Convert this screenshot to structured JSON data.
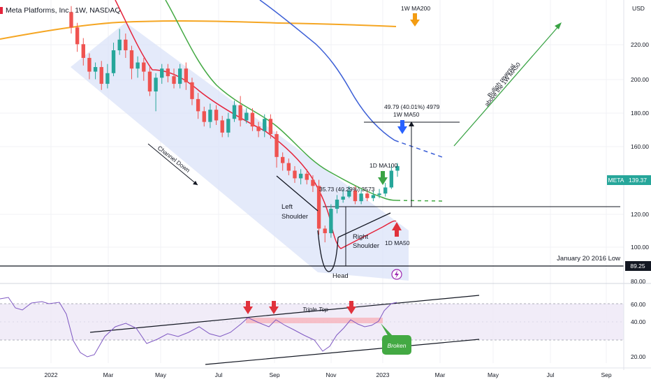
{
  "header": {
    "title": "Meta Platforms, Inc., 1W, NASDAQ"
  },
  "price_axis": {
    "currency": "USD",
    "ticks": [
      "220.00",
      "200.00",
      "180.00",
      "160.00",
      "120.00",
      "100.00",
      "80.00"
    ],
    "ticker_label": "META",
    "last_price": "139.37",
    "low_price_label": "89.25"
  },
  "rsi_axis": {
    "ticks": [
      "60.00",
      "40.00",
      "20.00"
    ]
  },
  "time_axis": {
    "labels": [
      "2022",
      "Mar",
      "May",
      "Jul",
      "Sep",
      "Nov",
      "2023",
      "Mar",
      "May",
      "Jul",
      "Sep"
    ]
  },
  "annotations": {
    "ma200": "1W MA200",
    "ma50w": "1W MA50",
    "ma100d": "1D MA100",
    "ma50d": "1D MA50",
    "measure_top": "49.79 (40.01%) 4979",
    "measure_mid": "35.73 (40.29%) 3573",
    "channel": "Channel Down",
    "left_shoulder_1": "Left",
    "left_shoulder_2": "Shoulder",
    "right_shoulder_1": "Right",
    "right_shoulder_2": "Shoulder",
    "head": "Head",
    "bullish_1": "Bullish reversal",
    "bullish_2": "above the 1W MA50",
    "low_label": "January 20 2016 Low",
    "triple_top": "Triple Top",
    "broken": "Broken"
  },
  "colors": {
    "bull": "#26a69a",
    "bear": "#ef5350",
    "ma200": "#f5a623",
    "ma50w": "#3c5fd6",
    "ma_red": "#e5243b",
    "ma_green": "#43a943",
    "rsi": "#7e57c2",
    "arrow_red": "#e0323c",
    "arrow_green": "#3aa345",
    "arrow_blue": "#2962ff",
    "arrow_orange": "#f39c12",
    "channel": "#dbe3f8"
  },
  "chart_data": {
    "type": "candlestick",
    "symbol": "Meta Platforms, Inc., 1W, NASDAQ",
    "currency": "USD",
    "ylim": [
      62,
      248
    ],
    "x_labels": [
      "2022",
      "Mar",
      "May",
      "Jul",
      "Sep",
      "Nov",
      "2023",
      "Mar",
      "May",
      "Jul",
      "Sep"
    ],
    "candles": [
      [
        240,
        230,
        244,
        226
      ],
      [
        230,
        219,
        233,
        214
      ],
      [
        219,
        210,
        223,
        205
      ],
      [
        210,
        201,
        213,
        196
      ],
      [
        201,
        204,
        207,
        196
      ],
      [
        204,
        193,
        208,
        189
      ],
      [
        193,
        200,
        206,
        190
      ],
      [
        200,
        215,
        220,
        198
      ],
      [
        215,
        222,
        229,
        212
      ],
      [
        222,
        215,
        226,
        210
      ],
      [
        215,
        203,
        218,
        196
      ],
      [
        203,
        207,
        211,
        197
      ],
      [
        207,
        201,
        210,
        195
      ],
      [
        201,
        188,
        204,
        185
      ],
      [
        188,
        197,
        200,
        175
      ],
      [
        197,
        203,
        206,
        193
      ],
      [
        203,
        198,
        206,
        194
      ],
      [
        198,
        193,
        203,
        190
      ],
      [
        193,
        203,
        206,
        190
      ],
      [
        203,
        194,
        207,
        189
      ],
      [
        194,
        183,
        197,
        179
      ],
      [
        183,
        175,
        187,
        170
      ],
      [
        175,
        168,
        178,
        165
      ],
      [
        168,
        176,
        180,
        164
      ],
      [
        176,
        169,
        179,
        166
      ],
      [
        169,
        161,
        172,
        158
      ],
      [
        161,
        170,
        174,
        158
      ],
      [
        170,
        179,
        182,
        168
      ],
      [
        179,
        169,
        185,
        165
      ],
      [
        169,
        174,
        177,
        167
      ],
      [
        174,
        165,
        177,
        162
      ],
      [
        165,
        162,
        168,
        158
      ],
      [
        162,
        170,
        173,
        158
      ],
      [
        170,
        160,
        173,
        157
      ],
      [
        160,
        145,
        162,
        138
      ],
      [
        145,
        141,
        148,
        136
      ],
      [
        141,
        136,
        144,
        133
      ],
      [
        136,
        131,
        139,
        128
      ],
      [
        131,
        134,
        137,
        127
      ],
      [
        134,
        130,
        137,
        127
      ],
      [
        130,
        126,
        133,
        122
      ],
      [
        126,
        98,
        130,
        94
      ],
      [
        98,
        95,
        100,
        89
      ],
      [
        95,
        111,
        114,
        92
      ],
      [
        111,
        117,
        120,
        108
      ],
      [
        117,
        119,
        124,
        115
      ],
      [
        119,
        123,
        126,
        118
      ],
      [
        123,
        116,
        126,
        114
      ],
      [
        116,
        121,
        124,
        114
      ],
      [
        121,
        118,
        123,
        116
      ],
      [
        118,
        120,
        123,
        116
      ],
      [
        120,
        121,
        124,
        118
      ],
      [
        121,
        125,
        128,
        119
      ],
      [
        125,
        136,
        140,
        124
      ],
      [
        136,
        139,
        141,
        132
      ]
    ],
    "lines": {
      "1W MA200": [
        [
          0,
          227
        ],
        [
          20,
          230
        ],
        [
          40,
          233
        ],
        [
          60,
          236
        ],
        [
          80,
          238
        ],
        [
          100,
          240
        ],
        [
          120,
          241.5
        ],
        [
          140,
          242.3
        ],
        [
          160,
          242.6
        ],
        [
          180,
          242.7
        ],
        [
          200,
          242.5
        ],
        [
          240,
          242
        ],
        [
          280,
          241.2
        ],
        [
          320,
          240.7
        ],
        [
          360,
          240.3
        ],
        [
          400,
          240
        ],
        [
          440,
          239.8
        ],
        [
          480,
          239.4
        ],
        [
          520,
          238.8
        ],
        [
          567,
          238
        ]
      ],
      "1W MA50": [
        [
          372,
          260
        ],
        [
          392,
          254
        ],
        [
          412,
          248
        ],
        [
          432,
          241
        ],
        [
          452,
          233
        ],
        [
          470,
          224
        ],
        [
          488,
          214
        ],
        [
          505,
          203
        ],
        [
          520,
          193
        ],
        [
          536,
          183
        ],
        [
          552,
          175
        ],
        [
          565,
          170
        ],
        [
          600,
          162
        ],
        [
          635,
          152
        ]
      ]
    },
    "rsi": {
      "ylim": [
        13,
        70
      ],
      "ticks": [
        60,
        40,
        20
      ]
    },
    "levels": {
      "low": 89.25,
      "last": 139.37
    }
  }
}
